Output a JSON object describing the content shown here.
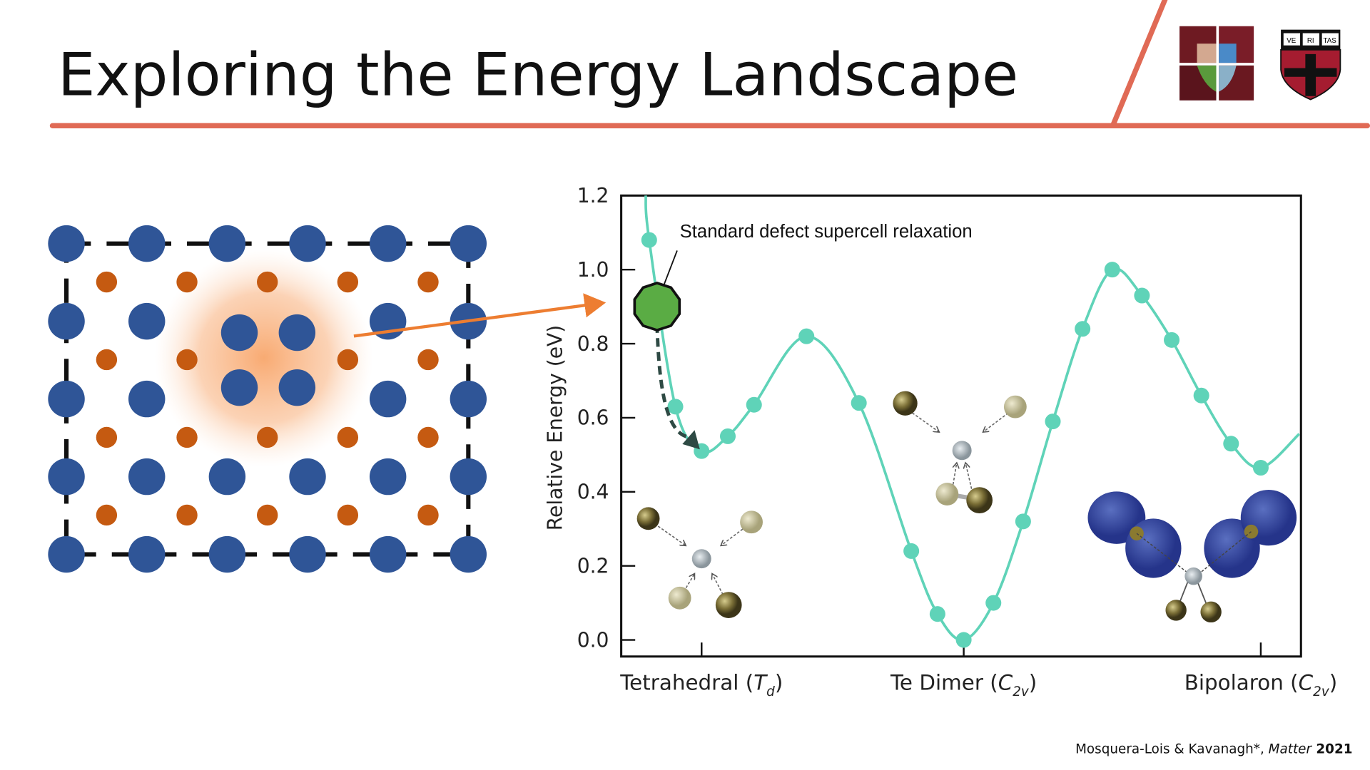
{
  "slide": {
    "title": "Exploring the Energy Landscape",
    "accent_color": "#e06a55",
    "citation": {
      "authors": "Mosquera-Lois & Kavanagh*, ",
      "journal": "Matter",
      "year": " 2021"
    },
    "logos": {
      "left": "school-mosaic-logo",
      "right": "harvard-veritas-shield",
      "shield_text": [
        "VE",
        "RI",
        "TAS"
      ]
    }
  },
  "lattice": {
    "host_atom_color": "#2f5597",
    "interstitial_color": "#c55a11",
    "defect_glow_color": "#f8a66b",
    "arrow_color": "#ed7d31"
  },
  "chart_data": {
    "type": "line",
    "ylabel": "Relative Energy (eV)",
    "ylim": [
      -0.05,
      1.2
    ],
    "yticks": [
      "0.0",
      "0.2",
      "0.4",
      "0.6",
      "0.8",
      "1.0",
      "1.2"
    ],
    "categories": [
      "Tetrahedral (T_d)",
      "Te Dimer (C_2v)",
      "Bipolaron (C_2v)"
    ],
    "xtick_labels": [
      {
        "main": "Tetrahedral (",
        "it": "T",
        "sub": "d",
        "end": ")"
      },
      {
        "main": "Te Dimer (",
        "it": "C",
        "sub": "2v",
        "end": ")"
      },
      {
        "main": "Bipolaron (",
        "it": "C",
        "sub": "2v",
        "end": ")"
      }
    ],
    "line_color": "#5fd3b8",
    "series": [
      {
        "x": [
          -0.2,
          -0.1,
          0.0,
          0.1,
          0.2,
          0.4,
          0.6,
          0.8,
          0.9,
          1.0,
          1.1,
          1.2,
          1.3,
          1.4,
          1.5,
          1.6,
          1.7,
          1.8,
          1.9,
          2.0
        ],
        "y": [
          1.08,
          0.63,
          0.51,
          0.55,
          0.635,
          0.82,
          0.64,
          0.24,
          0.07,
          0.0,
          0.1,
          0.32,
          0.59,
          0.84,
          1.0,
          0.93,
          0.81,
          0.66,
          0.53,
          0.465
        ]
      }
    ],
    "annotation": {
      "text": "Standard defect supercell relaxation",
      "start": {
        "x": -0.17,
        "y": 0.9
      },
      "end": {
        "x": 0.0,
        "y": 0.51
      },
      "marker_color": "#5aac44"
    },
    "grid": false
  }
}
